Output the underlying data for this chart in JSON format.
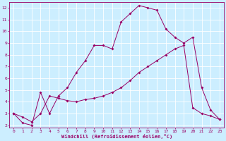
{
  "xlabel": "Windchill (Refroidissement éolien,°C)",
  "bg_color": "#cceeff",
  "grid_color": "#ffffff",
  "line_color": "#990066",
  "xlim": [
    -0.5,
    23.5
  ],
  "ylim": [
    1.8,
    12.5
  ],
  "xticks": [
    0,
    1,
    2,
    3,
    4,
    5,
    6,
    7,
    8,
    9,
    10,
    11,
    12,
    13,
    14,
    15,
    16,
    17,
    18,
    19,
    20,
    21,
    22,
    23
  ],
  "yticks": [
    2,
    3,
    4,
    5,
    6,
    7,
    8,
    9,
    10,
    11,
    12
  ],
  "line1_x": [
    0,
    1,
    2,
    3,
    4,
    5,
    6,
    7,
    8,
    9,
    10,
    11,
    12,
    13,
    14,
    15,
    16,
    17,
    18,
    19,
    20,
    21,
    22,
    23
  ],
  "line1_y": [
    3.0,
    2.2,
    2.0,
    4.8,
    3.0,
    4.5,
    5.2,
    6.5,
    7.5,
    8.8,
    8.8,
    8.5,
    10.8,
    11.5,
    12.2,
    12.0,
    11.8,
    10.2,
    9.5,
    9.0,
    9.5,
    5.2,
    3.3,
    2.5
  ],
  "line2_x": [
    0,
    1,
    2,
    3,
    4,
    5,
    6,
    7,
    8,
    9,
    10,
    11,
    12,
    13,
    14,
    15,
    16,
    17,
    18,
    19,
    20,
    21,
    22,
    23
  ],
  "line2_y": [
    3.0,
    2.7,
    2.3,
    3.0,
    4.5,
    4.3,
    4.1,
    4.0,
    4.2,
    4.3,
    4.5,
    4.8,
    5.2,
    5.8,
    6.5,
    7.0,
    7.5,
    8.0,
    8.5,
    8.8,
    3.5,
    3.0,
    2.8,
    2.5
  ]
}
